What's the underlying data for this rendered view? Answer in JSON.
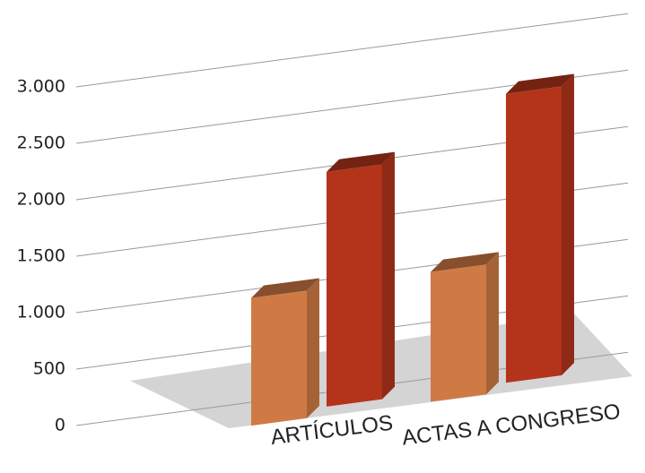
{
  "chart_data": {
    "type": "bar3d",
    "categories": [
      "ARTÍCULOS",
      "ACTAS A CONGRESO"
    ],
    "series": [
      {
        "color": "#cf7a45",
        "values": [
          1130,
          1150
        ]
      },
      {
        "color": "#b3341b",
        "values": [
          2080,
          2560
        ]
      }
    ],
    "ylim": [
      0,
      3000
    ],
    "yticks": [
      0,
      500,
      {
        "value": 1000,
        "label": "1.000"
      },
      {
        "value": 1500,
        "label": "1.500"
      },
      {
        "value": 2000,
        "label": "2.000"
      },
      {
        "value": 2500,
        "label": "2.500"
      },
      {
        "value": 3000,
        "label": "3.000"
      }
    ],
    "grid": true
  }
}
